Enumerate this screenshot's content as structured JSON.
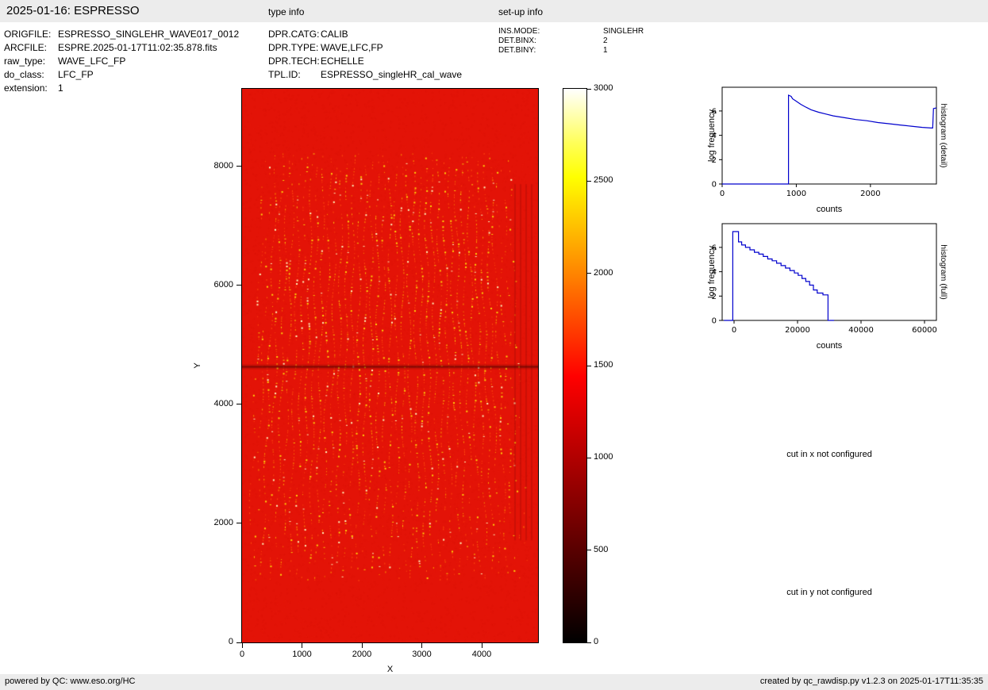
{
  "header": {
    "title": "2025-01-16: ESPRESSO"
  },
  "sections": {
    "file_info": {
      "rows": [
        {
          "label": "ORIGFILE:",
          "value": "ESPRESSO_SINGLEHR_WAVE017_0012"
        },
        {
          "label": "ARCFILE:",
          "value": "ESPRE.2025-01-17T11:02:35.878.fits"
        },
        {
          "label": "raw_type:",
          "value": "WAVE_LFC_FP"
        },
        {
          "label": "do_class:",
          "value": "LFC_FP"
        },
        {
          "label": "extension:",
          "value": "1"
        }
      ]
    },
    "type_info": {
      "heading": "type info",
      "rows": [
        {
          "label": "DPR.CATG:",
          "value": "CALIB"
        },
        {
          "label": "DPR.TYPE:",
          "value": "WAVE,LFC,FP"
        },
        {
          "label": "DPR.TECH:",
          "value": "ECHELLE"
        },
        {
          "label": "TPL.ID:",
          "value": "ESPRESSO_singleHR_cal_wave"
        }
      ]
    },
    "setup_info": {
      "heading": "set-up info",
      "rows": [
        {
          "label": "INS.MODE:",
          "value": "SINGLEHR"
        },
        {
          "label": "DET.BINX:",
          "value": "2"
        },
        {
          "label": "DET.BINY:",
          "value": "1"
        }
      ]
    }
  },
  "messages": {
    "cut_x": "cut in x not configured",
    "cut_y": "cut in y not configured"
  },
  "footer": {
    "left": "powered by QC: www.eso.org/HC",
    "right": "created by qc_rawdisp.py v1.2.3 on 2025-01-17T11:35:35"
  },
  "chart_data": [
    {
      "type": "heatmap",
      "name": "raw-frame",
      "title": "",
      "xlabel": "X",
      "ylabel": "Y",
      "xlim": [
        0,
        4940
      ],
      "ylim": [
        0,
        9300
      ],
      "xticks": [
        0,
        1000,
        2000,
        3000,
        4000
      ],
      "yticks": [
        0,
        2000,
        4000,
        6000,
        8000
      ],
      "colormap": "hot",
      "value_range": [
        0,
        3000
      ],
      "colorbar_ticks": [
        0,
        500,
        1000,
        1500,
        2000,
        2500,
        3000
      ],
      "features": {
        "base_level": 1100,
        "speckle_y_range": [
          1050,
          8230
        ],
        "detector_gap_y": 4630,
        "base_color": "#e31307",
        "dot_colors": [
          "#ff4a0e",
          "#ff9d00",
          "#ffd60a",
          "#fffbc0"
        ]
      }
    },
    {
      "type": "line",
      "name": "histogram-detail",
      "side_label": "histogram (detail)",
      "xlabel": "counts",
      "ylabel": "log frequency",
      "xlim": [
        0,
        2890
      ],
      "ylim": [
        0,
        7.95
      ],
      "xticks": [
        0,
        1000,
        2000
      ],
      "yticks": [
        0,
        2,
        4,
        6
      ],
      "line_color": "#0000cd",
      "points": [
        [
          0,
          0
        ],
        [
          895,
          0
        ],
        [
          895,
          7.3
        ],
        [
          930,
          7.2
        ],
        [
          950,
          7.0
        ],
        [
          1000,
          6.8
        ],
        [
          1060,
          6.55
        ],
        [
          1120,
          6.35
        ],
        [
          1200,
          6.1
        ],
        [
          1300,
          5.9
        ],
        [
          1400,
          5.75
        ],
        [
          1500,
          5.6
        ],
        [
          1650,
          5.45
        ],
        [
          1800,
          5.3
        ],
        [
          1950,
          5.2
        ],
        [
          2100,
          5.05
        ],
        [
          2250,
          4.95
        ],
        [
          2400,
          4.85
        ],
        [
          2550,
          4.75
        ],
        [
          2700,
          4.65
        ],
        [
          2820,
          4.6
        ],
        [
          2840,
          4.6
        ],
        [
          2850,
          6.2
        ],
        [
          2890,
          6.25
        ]
      ]
    },
    {
      "type": "line",
      "name": "histogram-full",
      "side_label": "histogram (full)",
      "xlabel": "counts",
      "ylabel": "log frequency",
      "xlim": [
        -3750,
        63750
      ],
      "ylim": [
        0,
        7.95
      ],
      "xticks": [
        0,
        20000,
        40000,
        60000
      ],
      "yticks": [
        0,
        2,
        4,
        6
      ],
      "line_color": "#0000cd",
      "points": [
        [
          -3200,
          0
        ],
        [
          -400,
          0
        ],
        [
          -400,
          7.3
        ],
        [
          1400,
          7.3
        ],
        [
          1400,
          6.45
        ],
        [
          2400,
          6.45
        ],
        [
          2400,
          6.2
        ],
        [
          3600,
          6.2
        ],
        [
          3600,
          6.0
        ],
        [
          5000,
          6.0
        ],
        [
          5000,
          5.8
        ],
        [
          6400,
          5.8
        ],
        [
          6400,
          5.6
        ],
        [
          7800,
          5.6
        ],
        [
          7800,
          5.45
        ],
        [
          9200,
          5.45
        ],
        [
          9200,
          5.25
        ],
        [
          10600,
          5.25
        ],
        [
          10600,
          5.05
        ],
        [
          12000,
          5.05
        ],
        [
          12000,
          4.9
        ],
        [
          13400,
          4.9
        ],
        [
          13400,
          4.7
        ],
        [
          14800,
          4.7
        ],
        [
          14800,
          4.5
        ],
        [
          16200,
          4.5
        ],
        [
          16200,
          4.3
        ],
        [
          17600,
          4.3
        ],
        [
          17600,
          4.1
        ],
        [
          19000,
          4.1
        ],
        [
          19000,
          3.9
        ],
        [
          20200,
          3.9
        ],
        [
          20200,
          3.7
        ],
        [
          21400,
          3.7
        ],
        [
          21400,
          3.45
        ],
        [
          22600,
          3.45
        ],
        [
          22600,
          3.2
        ],
        [
          23800,
          3.2
        ],
        [
          23800,
          2.9
        ],
        [
          25000,
          2.9
        ],
        [
          25000,
          2.5
        ],
        [
          26200,
          2.5
        ],
        [
          26200,
          2.25
        ],
        [
          28000,
          2.25
        ],
        [
          28000,
          2.1
        ],
        [
          29600,
          2.1
        ],
        [
          29600,
          0
        ],
        [
          31500,
          0
        ]
      ]
    }
  ]
}
